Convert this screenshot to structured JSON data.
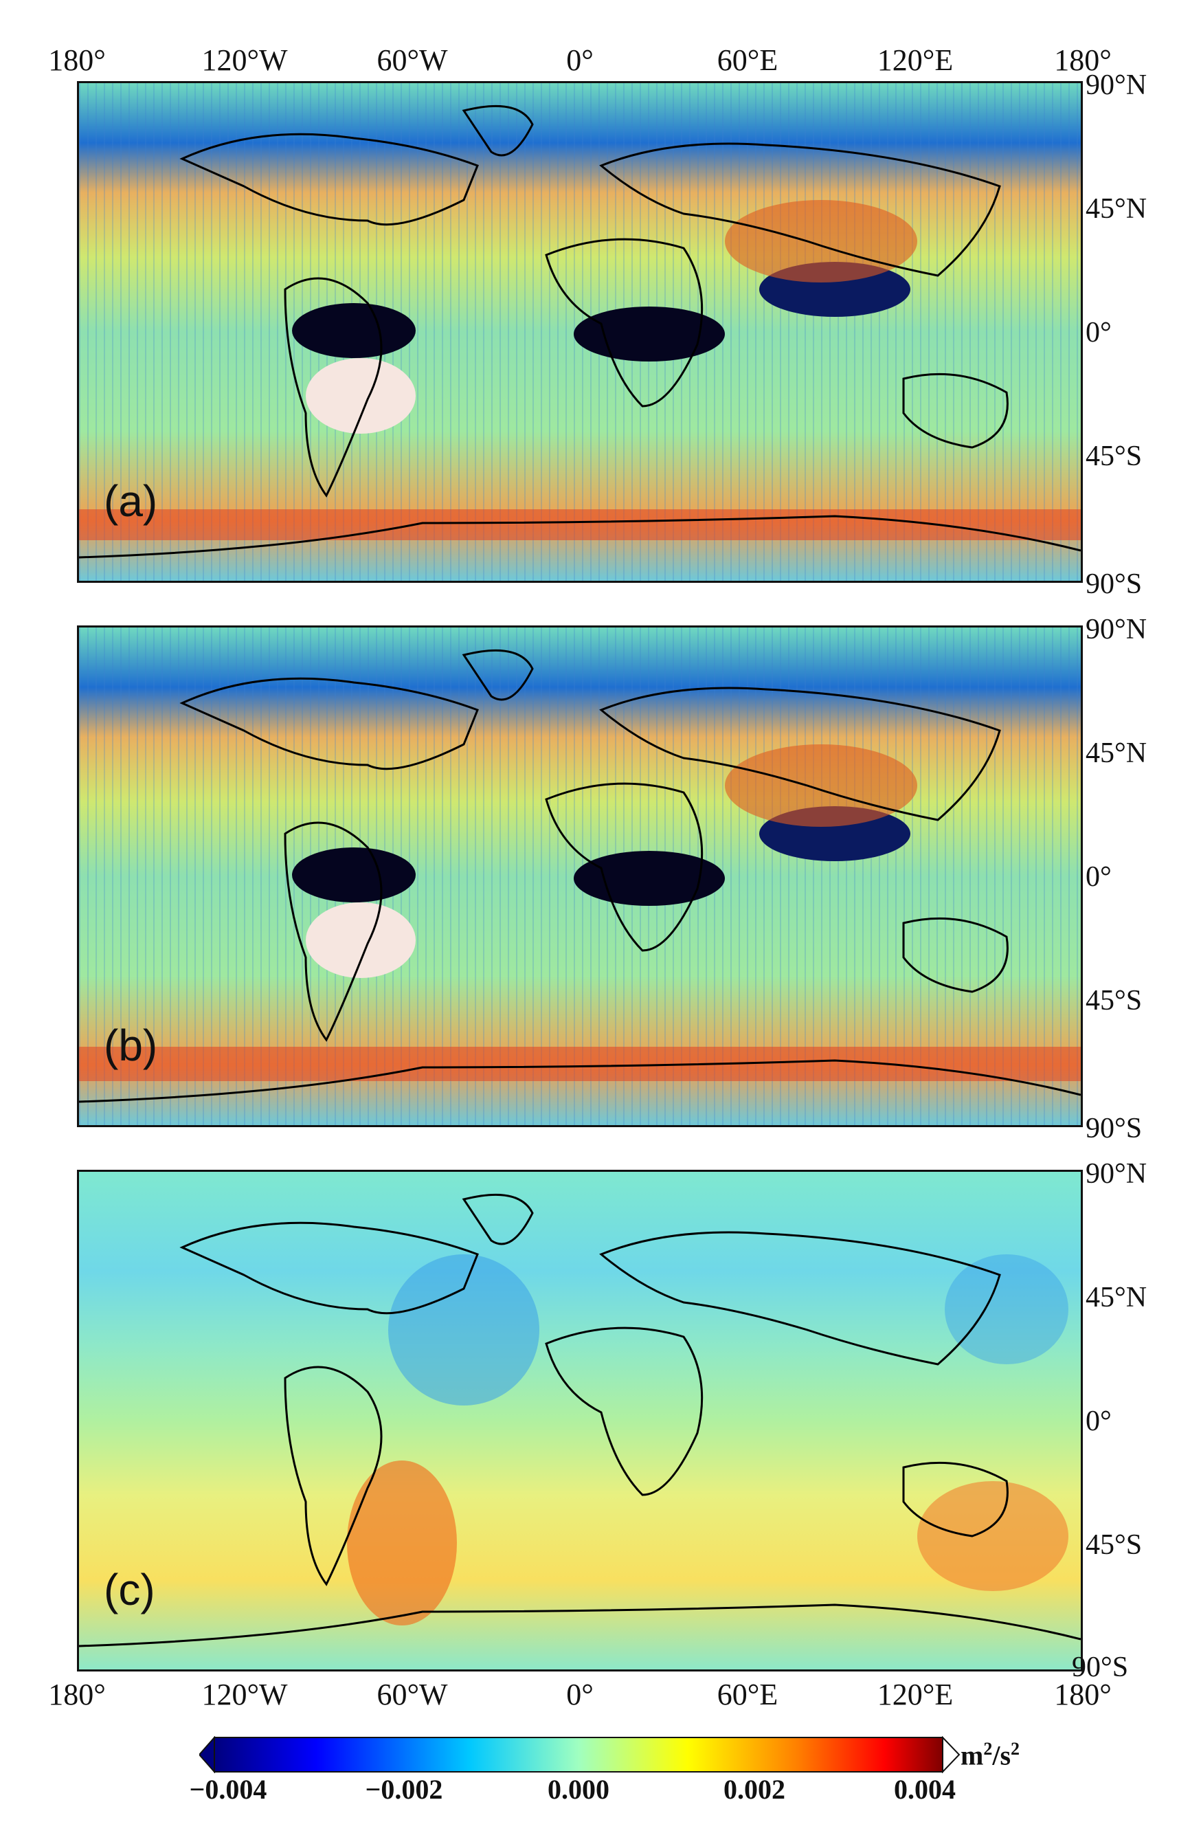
{
  "lon_labels": [
    "180°",
    "120°W",
    "60°W",
    "0°",
    "60°E",
    "120°E",
    "180°"
  ],
  "panels": [
    {
      "tag": "(a)",
      "lat_labels": [
        "90°N",
        "45°N",
        "0°",
        "45°S",
        "90°S"
      ]
    },
    {
      "tag": "(b)",
      "lat_labels": [
        "90°N",
        "45°N",
        "0°",
        "45°S",
        "90°S"
      ]
    },
    {
      "tag": "(c)",
      "lat_labels": [
        "90°N",
        "45°N",
        "0°",
        "45°S",
        "90°S"
      ]
    }
  ],
  "colorbar": {
    "ticks": [
      "−0.004",
      "−0.002",
      "0.000",
      "0.002",
      "0.004"
    ],
    "unit_base": "m",
    "unit_sup1": "2",
    "unit_mid": "/s",
    "unit_sup2": "2",
    "colors": [
      "#00007f",
      "#0000ff",
      "#00c8ff",
      "#a0ffc0",
      "#ffff00",
      "#ff8000",
      "#ff0000",
      "#7f0000"
    ]
  }
}
